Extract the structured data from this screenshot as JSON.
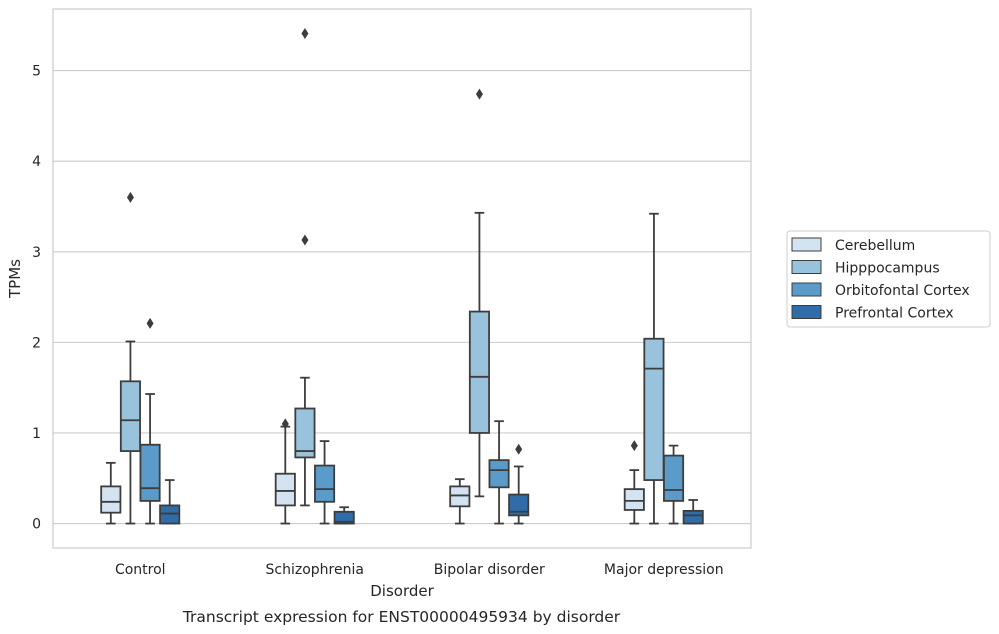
{
  "chart_data": {
    "type": "box",
    "caption": "Transcript expression for ENST00000495934 by disorder",
    "xlabel": "Disorder",
    "ylabel": "TPMs",
    "ylim": [
      -0.27,
      5.68
    ],
    "yticks": [
      0,
      1,
      2,
      3,
      4,
      5
    ],
    "grid": "horizontal",
    "legend_position": "right",
    "categories": [
      "Control",
      "Schizophrenia",
      "Bipolar disorder",
      "Major depression"
    ],
    "series": [
      {
        "name": "Cerebellum",
        "color": "#d4e3f2",
        "boxes": [
          {
            "whislo": 0.0,
            "q1": 0.12,
            "med": 0.24,
            "q3": 0.41,
            "whishi": 0.67,
            "fliers": []
          },
          {
            "whislo": 0.0,
            "q1": 0.2,
            "med": 0.36,
            "q3": 0.55,
            "whishi": 1.07,
            "fliers": [
              1.1
            ]
          },
          {
            "whislo": 0.0,
            "q1": 0.19,
            "med": 0.31,
            "q3": 0.41,
            "whishi": 0.49,
            "fliers": []
          },
          {
            "whislo": 0.0,
            "q1": 0.15,
            "med": 0.25,
            "q3": 0.38,
            "whishi": 0.59,
            "fliers": [
              0.86
            ]
          }
        ]
      },
      {
        "name": "Hipppocampus",
        "color": "#99c3dd",
        "boxes": [
          {
            "whislo": 0.0,
            "q1": 0.8,
            "med": 1.14,
            "q3": 1.57,
            "whishi": 2.01,
            "fliers": [
              3.6
            ]
          },
          {
            "whislo": 0.2,
            "q1": 0.73,
            "med": 0.8,
            "q3": 1.27,
            "whishi": 1.61,
            "fliers": [
              3.13,
              5.41
            ]
          },
          {
            "whislo": 0.3,
            "q1": 1.0,
            "med": 1.62,
            "q3": 2.34,
            "whishi": 3.43,
            "fliers": [
              4.74
            ]
          },
          {
            "whislo": 0.0,
            "q1": 0.48,
            "med": 1.71,
            "q3": 2.04,
            "whishi": 3.42,
            "fliers": []
          }
        ]
      },
      {
        "name": "Orbitofontal Cortex",
        "color": "#5a9bc9",
        "boxes": [
          {
            "whislo": 0.0,
            "q1": 0.25,
            "med": 0.39,
            "q3": 0.87,
            "whishi": 1.43,
            "fliers": [
              2.21
            ]
          },
          {
            "whislo": 0.0,
            "q1": 0.24,
            "med": 0.38,
            "q3": 0.64,
            "whishi": 0.91,
            "fliers": []
          },
          {
            "whislo": 0.0,
            "q1": 0.4,
            "med": 0.59,
            "q3": 0.7,
            "whishi": 1.13,
            "fliers": []
          },
          {
            "whislo": 0.0,
            "q1": 0.25,
            "med": 0.37,
            "q3": 0.75,
            "whishi": 0.86,
            "fliers": []
          }
        ]
      },
      {
        "name": "Prefrontal Cortex",
        "color": "#2f6ca8",
        "boxes": [
          {
            "whislo": 0.0,
            "q1": 0.0,
            "med": 0.11,
            "q3": 0.2,
            "whishi": 0.48,
            "fliers": []
          },
          {
            "whislo": 0.0,
            "q1": 0.0,
            "med": 0.02,
            "q3": 0.13,
            "whishi": 0.18,
            "fliers": []
          },
          {
            "whislo": 0.0,
            "q1": 0.09,
            "med": 0.13,
            "q3": 0.32,
            "whishi": 0.63,
            "fliers": [
              0.82
            ]
          },
          {
            "whislo": 0.0,
            "q1": 0.0,
            "med": 0.09,
            "q3": 0.14,
            "whishi": 0.26,
            "fliers": []
          }
        ]
      }
    ]
  }
}
